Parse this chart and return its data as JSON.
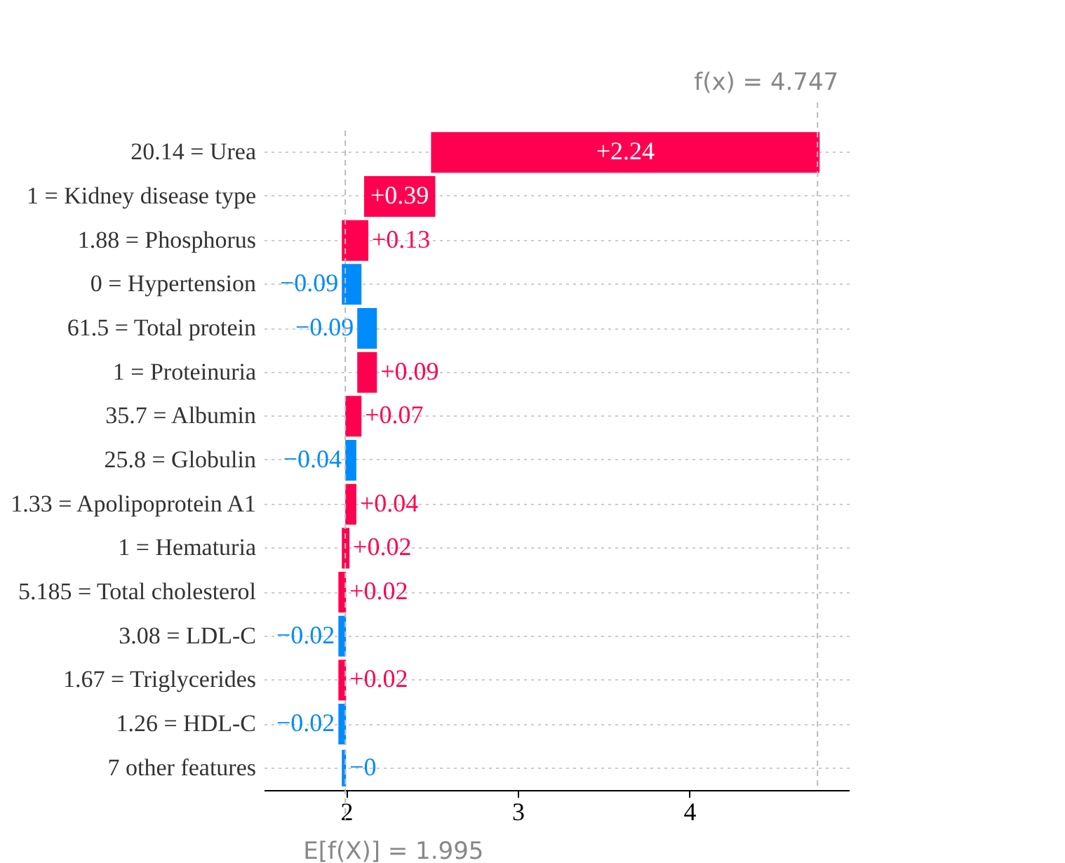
{
  "chart_data": {
    "type": "bar",
    "orientation": "horizontal",
    "categories": [
      "20.14 = Urea",
      "1 = Kidney disease type",
      "1.88 = Phosphorus",
      "0 = Hypertension",
      "61.5 = Total protein",
      "1 = Proteinuria",
      "35.7 = Albumin",
      "25.8 = Globulin",
      "1.33 = Apolipoprotein A1",
      "1 = Hematuria",
      "5.185 = Total cholesterol",
      "3.08 = LDL-C",
      "1.67 = Triglycerides",
      "1.26 = HDL-C",
      "7 other features"
    ],
    "values": [
      2.24,
      0.39,
      0.13,
      -0.09,
      -0.09,
      0.09,
      0.07,
      -0.04,
      0.04,
      0.02,
      0.02,
      -0.02,
      0.02,
      -0.02,
      0
    ],
    "base": [
      2.507,
      2.117,
      1.987,
      2.077,
      2.167,
      2.077,
      2.007,
      2.047,
      2.007,
      1.987,
      1.967,
      1.987,
      1.967,
      1.987,
      1.987
    ],
    "colors": [
      "#ff0051",
      "#ff0051",
      "#ff0051",
      "#008bfb",
      "#008bfb",
      "#ff0051",
      "#ff0051",
      "#008bfb",
      "#ff0051",
      "#ff0051",
      "#ff0051",
      "#008bfb",
      "#ff0051",
      "#008bfb",
      "#008bfb"
    ],
    "value_labels": [
      "+2.24",
      "+0.39",
      "+0.13",
      "−0.09",
      "−0.09",
      "+0.09",
      "+0.07",
      "−0.04",
      "+0.04",
      "+0.02",
      "+0.02",
      "−0.02",
      "+0.02",
      "−0.02",
      "−0"
    ],
    "xlim": [
      1.52,
      4.93
    ],
    "xticks": [
      2,
      3,
      4
    ],
    "grid": "y",
    "ref_lines": [
      {
        "axis": "x",
        "value": 1.995,
        "label": "E[f(X)] = 1.995"
      },
      {
        "axis": "x",
        "value": 4.747,
        "label": "f(x) = 4.747"
      }
    ]
  }
}
